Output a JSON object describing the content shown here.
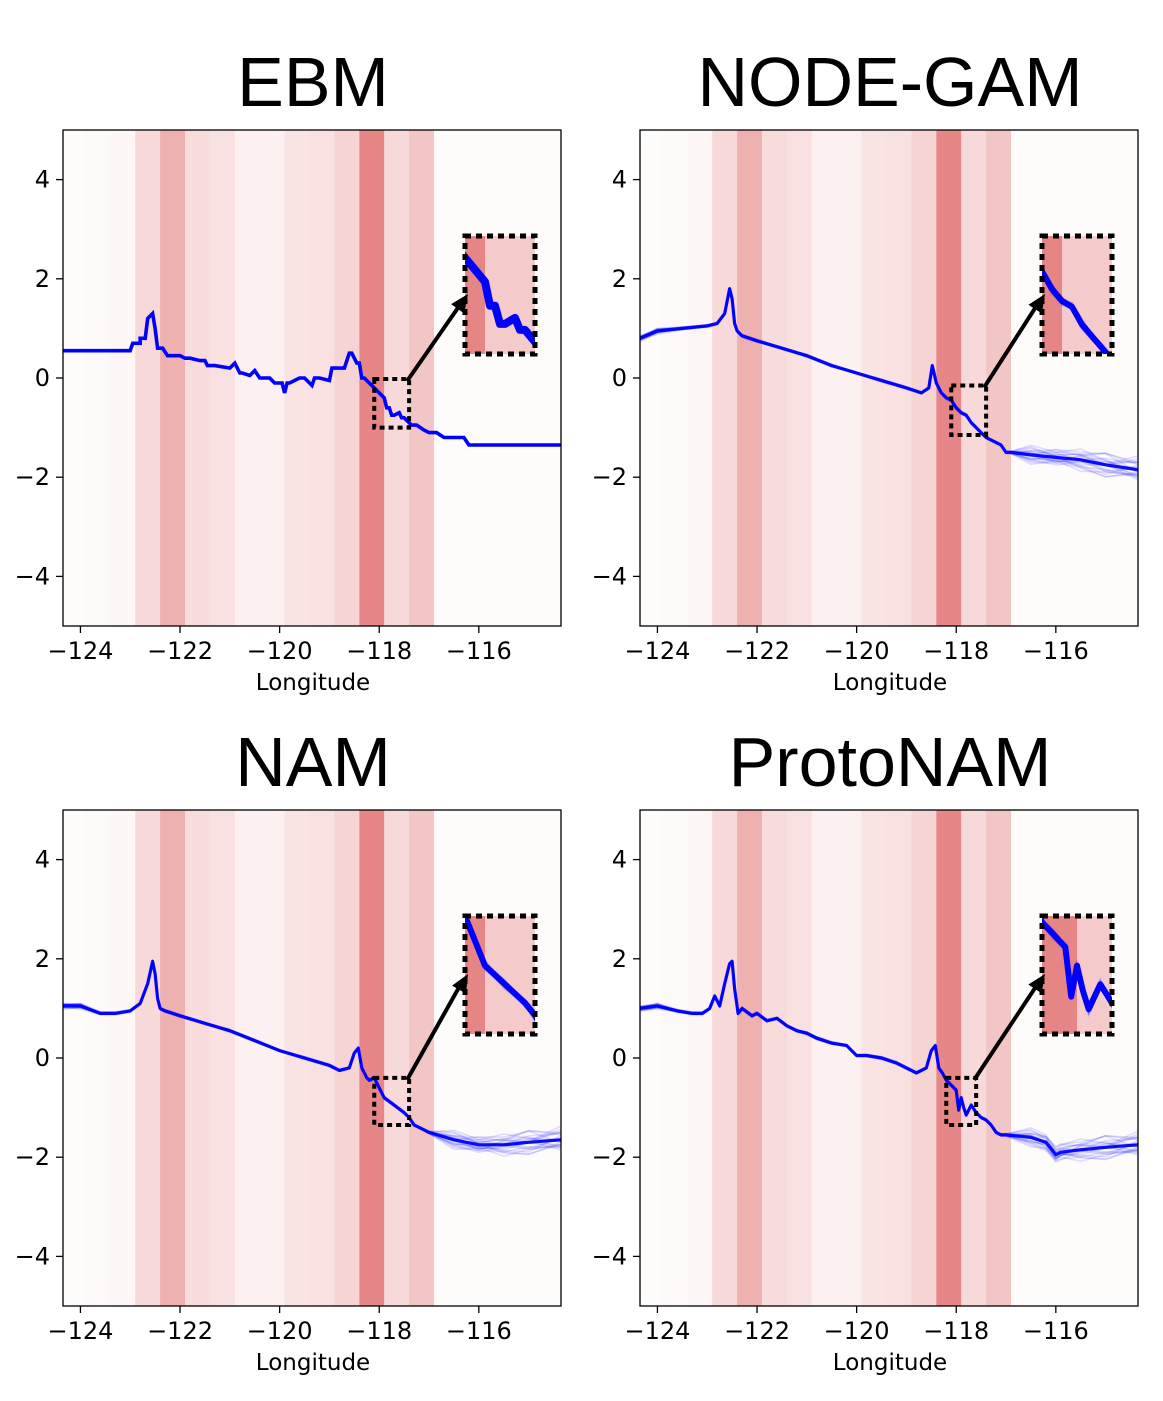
{
  "figure": {
    "background": "#ffffff",
    "line_color": "#0000ff",
    "band_color": "#e58080"
  },
  "chart_data": [
    {
      "type": "line",
      "title": "EBM",
      "xlabel": "Longitude",
      "ylabel": "",
      "xlim": [
        -124.35,
        -114.35
      ],
      "ylim": [
        -5,
        5
      ],
      "xticks": [
        -124,
        -122,
        -120,
        -118,
        -116
      ],
      "xtick_labels": [
        "−124",
        "−122",
        "−120",
        "−118",
        "−116"
      ],
      "yticks": [
        -4,
        -2,
        0,
        2,
        4
      ],
      "ytick_labels": [
        "−4",
        "−2",
        "0",
        "2",
        "4"
      ],
      "grid": false,
      "ensemble": false,
      "density_bands": [
        {
          "x0": -124.35,
          "x1": -123.9,
          "alpha": 0.03
        },
        {
          "x0": -123.9,
          "x1": -123.4,
          "alpha": 0.05
        },
        {
          "x0": -123.4,
          "x1": -122.9,
          "alpha": 0.07
        },
        {
          "x0": -122.9,
          "x1": -122.4,
          "alpha": 0.3
        },
        {
          "x0": -122.4,
          "x1": -121.9,
          "alpha": 0.62
        },
        {
          "x0": -121.9,
          "x1": -121.4,
          "alpha": 0.28
        },
        {
          "x0": -121.4,
          "x1": -120.9,
          "alpha": 0.24
        },
        {
          "x0": -120.9,
          "x1": -120.4,
          "alpha": 0.12
        },
        {
          "x0": -120.4,
          "x1": -119.9,
          "alpha": 0.12
        },
        {
          "x0": -119.9,
          "x1": -119.4,
          "alpha": 0.22
        },
        {
          "x0": -119.4,
          "x1": -118.9,
          "alpha": 0.24
        },
        {
          "x0": -118.9,
          "x1": -118.4,
          "alpha": 0.34
        },
        {
          "x0": -118.4,
          "x1": -117.9,
          "alpha": 0.95
        },
        {
          "x0": -117.9,
          "x1": -117.4,
          "alpha": 0.3
        },
        {
          "x0": -117.4,
          "x1": -116.9,
          "alpha": 0.45
        },
        {
          "x0": -116.9,
          "x1": -114.35,
          "alpha": 0.03
        }
      ],
      "zoom_box": {
        "x0": -118.1,
        "x1": -117.4,
        "y0": -1.0,
        "y1": -0.02
      },
      "series": [
        {
          "x": [
            -124.35,
            -123.0,
            -122.95,
            -122.8,
            -122.8,
            -122.7,
            -122.65,
            -122.55,
            -122.5,
            -122.45,
            -122.35,
            -122.25,
            -122.2,
            -122.0,
            -121.9,
            -121.8,
            -121.6,
            -121.5,
            -121.45,
            -121.3,
            -121.0,
            -120.9,
            -120.8,
            -120.75,
            -120.6,
            -120.5,
            -120.4,
            -120.2,
            -120.1,
            -119.95,
            -119.9,
            -119.85,
            -119.8,
            -119.6,
            -119.5,
            -119.35,
            -119.3,
            -119.2,
            -119.0,
            -118.95,
            -118.8,
            -118.7,
            -118.6,
            -118.55,
            -118.45,
            -118.4,
            -118.35,
            -118.3,
            -118.2,
            -118.1,
            -118.0,
            -117.9,
            -117.85,
            -117.8,
            -117.75,
            -117.7,
            -117.6,
            -117.55,
            -117.5,
            -117.45,
            -117.35,
            -117.25,
            -117.1,
            -117.0,
            -116.85,
            -116.7,
            -116.3,
            -116.2,
            -116.0,
            -115.5,
            -114.35
          ],
          "y": [
            0.55,
            0.55,
            0.7,
            0.7,
            0.8,
            0.8,
            1.2,
            1.3,
            1.0,
            0.6,
            0.6,
            0.45,
            0.45,
            0.45,
            0.4,
            0.4,
            0.35,
            0.35,
            0.25,
            0.25,
            0.2,
            0.3,
            0.1,
            0.1,
            0.05,
            0.15,
            0.0,
            0.0,
            -0.1,
            -0.1,
            -0.3,
            -0.1,
            -0.1,
            0.0,
            0.0,
            -0.15,
            0.0,
            0.0,
            -0.05,
            0.2,
            0.2,
            0.2,
            0.5,
            0.5,
            0.3,
            0.3,
            0.0,
            0.0,
            -0.1,
            -0.2,
            -0.3,
            -0.4,
            -0.6,
            -0.6,
            -0.75,
            -0.75,
            -0.7,
            -0.8,
            -0.8,
            -0.85,
            -0.95,
            -0.95,
            -1.05,
            -1.1,
            -1.1,
            -1.2,
            -1.2,
            -1.35,
            -1.35,
            -1.35,
            -1.35
          ]
        }
      ]
    },
    {
      "type": "line",
      "title": "NODE-GAM",
      "xlabel": "Longitude",
      "ylabel": "",
      "xlim": [
        -124.35,
        -114.35
      ],
      "ylim": [
        -5,
        5
      ],
      "xticks": [
        -124,
        -122,
        -120,
        -118,
        -116
      ],
      "xtick_labels": [
        "−124",
        "−122",
        "−120",
        "−118",
        "−116"
      ],
      "yticks": [
        -4,
        -2,
        0,
        2,
        4
      ],
      "ytick_labels": [
        "−4",
        "−2",
        "0",
        "2",
        "4"
      ],
      "grid": false,
      "ensemble": true,
      "density_bands": [
        {
          "x0": -124.35,
          "x1": -123.9,
          "alpha": 0.03
        },
        {
          "x0": -123.9,
          "x1": -123.4,
          "alpha": 0.05
        },
        {
          "x0": -123.4,
          "x1": -122.9,
          "alpha": 0.07
        },
        {
          "x0": -122.9,
          "x1": -122.4,
          "alpha": 0.3
        },
        {
          "x0": -122.4,
          "x1": -121.9,
          "alpha": 0.62
        },
        {
          "x0": -121.9,
          "x1": -121.4,
          "alpha": 0.28
        },
        {
          "x0": -121.4,
          "x1": -120.9,
          "alpha": 0.24
        },
        {
          "x0": -120.9,
          "x1": -120.4,
          "alpha": 0.12
        },
        {
          "x0": -120.4,
          "x1": -119.9,
          "alpha": 0.12
        },
        {
          "x0": -119.9,
          "x1": -119.4,
          "alpha": 0.22
        },
        {
          "x0": -119.4,
          "x1": -118.9,
          "alpha": 0.24
        },
        {
          "x0": -118.9,
          "x1": -118.4,
          "alpha": 0.34
        },
        {
          "x0": -118.4,
          "x1": -117.9,
          "alpha": 0.95
        },
        {
          "x0": -117.9,
          "x1": -117.4,
          "alpha": 0.3
        },
        {
          "x0": -117.4,
          "x1": -116.9,
          "alpha": 0.45
        },
        {
          "x0": -116.9,
          "x1": -114.35,
          "alpha": 0.03
        }
      ],
      "zoom_box": {
        "x0": -118.1,
        "x1": -117.4,
        "y0": -1.15,
        "y1": -0.15
      },
      "series": [
        {
          "x": [
            -124.35,
            -124.0,
            -123.5,
            -123.0,
            -122.8,
            -122.65,
            -122.55,
            -122.5,
            -122.45,
            -122.4,
            -122.3,
            -122.0,
            -121.5,
            -121.0,
            -120.5,
            -120.0,
            -119.5,
            -119.0,
            -118.7,
            -118.55,
            -118.48,
            -118.4,
            -118.3,
            -118.2,
            -118.1,
            -118.0,
            -117.9,
            -117.8,
            -117.7,
            -117.6,
            -117.5,
            -117.4,
            -117.3,
            -117.1,
            -117.0,
            -116.9,
            -116.5,
            -116.0,
            -115.5,
            -115.0,
            -114.35
          ],
          "y": [
            0.8,
            0.95,
            1.0,
            1.05,
            1.1,
            1.3,
            1.8,
            1.6,
            1.1,
            0.95,
            0.85,
            0.75,
            0.6,
            0.45,
            0.25,
            0.1,
            -0.05,
            -0.2,
            -0.3,
            -0.2,
            0.25,
            -0.1,
            -0.3,
            -0.4,
            -0.45,
            -0.6,
            -0.7,
            -0.75,
            -0.9,
            -1.0,
            -1.1,
            -1.2,
            -1.25,
            -1.35,
            -1.5,
            -1.5,
            -1.55,
            -1.6,
            -1.65,
            -1.75,
            -1.85
          ]
        }
      ]
    },
    {
      "type": "line",
      "title": "NAM",
      "xlabel": "Longitude",
      "ylabel": "",
      "xlim": [
        -124.35,
        -114.35
      ],
      "ylim": [
        -5,
        5
      ],
      "xticks": [
        -124,
        -122,
        -120,
        -118,
        -116
      ],
      "xtick_labels": [
        "−124",
        "−122",
        "−120",
        "−118",
        "−116"
      ],
      "yticks": [
        -4,
        -2,
        0,
        2,
        4
      ],
      "ytick_labels": [
        "−4",
        "−2",
        "0",
        "2",
        "4"
      ],
      "grid": false,
      "ensemble": true,
      "density_bands": [
        {
          "x0": -124.35,
          "x1": -123.9,
          "alpha": 0.03
        },
        {
          "x0": -123.9,
          "x1": -123.4,
          "alpha": 0.05
        },
        {
          "x0": -123.4,
          "x1": -122.9,
          "alpha": 0.07
        },
        {
          "x0": -122.9,
          "x1": -122.4,
          "alpha": 0.3
        },
        {
          "x0": -122.4,
          "x1": -121.9,
          "alpha": 0.62
        },
        {
          "x0": -121.9,
          "x1": -121.4,
          "alpha": 0.28
        },
        {
          "x0": -121.4,
          "x1": -120.9,
          "alpha": 0.24
        },
        {
          "x0": -120.9,
          "x1": -120.4,
          "alpha": 0.12
        },
        {
          "x0": -120.4,
          "x1": -119.9,
          "alpha": 0.12
        },
        {
          "x0": -119.9,
          "x1": -119.4,
          "alpha": 0.22
        },
        {
          "x0": -119.4,
          "x1": -118.9,
          "alpha": 0.24
        },
        {
          "x0": -118.9,
          "x1": -118.4,
          "alpha": 0.34
        },
        {
          "x0": -118.4,
          "x1": -117.9,
          "alpha": 0.95
        },
        {
          "x0": -117.9,
          "x1": -117.4,
          "alpha": 0.3
        },
        {
          "x0": -117.4,
          "x1": -116.9,
          "alpha": 0.45
        },
        {
          "x0": -116.9,
          "x1": -114.35,
          "alpha": 0.03
        }
      ],
      "zoom_box": {
        "x0": -118.1,
        "x1": -117.4,
        "y0": -1.35,
        "y1": -0.4
      },
      "series": [
        {
          "x": [
            -124.35,
            -124.0,
            -123.6,
            -123.3,
            -123.0,
            -122.8,
            -122.65,
            -122.55,
            -122.5,
            -122.45,
            -122.4,
            -122.3,
            -122.0,
            -121.5,
            -121.0,
            -120.5,
            -120.0,
            -119.5,
            -119.0,
            -118.8,
            -118.6,
            -118.5,
            -118.42,
            -118.35,
            -118.25,
            -118.2,
            -118.1,
            -118.0,
            -117.9,
            -117.7,
            -117.5,
            -117.4,
            -117.3,
            -117.1,
            -117.0,
            -116.5,
            -116.0,
            -115.5,
            -115.0,
            -114.35
          ],
          "y": [
            1.05,
            1.05,
            0.9,
            0.9,
            0.95,
            1.1,
            1.5,
            1.95,
            1.7,
            1.2,
            1.0,
            0.95,
            0.85,
            0.7,
            0.55,
            0.35,
            0.15,
            0.0,
            -0.15,
            -0.25,
            -0.2,
            0.1,
            0.2,
            -0.2,
            -0.4,
            -0.45,
            -0.4,
            -0.6,
            -0.8,
            -0.95,
            -1.1,
            -1.2,
            -1.35,
            -1.45,
            -1.5,
            -1.65,
            -1.75,
            -1.75,
            -1.7,
            -1.65
          ]
        }
      ]
    },
    {
      "type": "line",
      "title": "ProtoNAM",
      "xlabel": "Longitude",
      "ylabel": "",
      "xlim": [
        -124.35,
        -114.35
      ],
      "ylim": [
        -5,
        5
      ],
      "xticks": [
        -124,
        -122,
        -120,
        -118,
        -116
      ],
      "xtick_labels": [
        "−124",
        "−122",
        "−120",
        "−118",
        "−116"
      ],
      "yticks": [
        -4,
        -2,
        0,
        2,
        4
      ],
      "ytick_labels": [
        "−4",
        "−2",
        "0",
        "2",
        "4"
      ],
      "grid": false,
      "ensemble": true,
      "density_bands": [
        {
          "x0": -124.35,
          "x1": -123.9,
          "alpha": 0.03
        },
        {
          "x0": -123.9,
          "x1": -123.4,
          "alpha": 0.05
        },
        {
          "x0": -123.4,
          "x1": -122.9,
          "alpha": 0.07
        },
        {
          "x0": -122.9,
          "x1": -122.4,
          "alpha": 0.3
        },
        {
          "x0": -122.4,
          "x1": -121.9,
          "alpha": 0.62
        },
        {
          "x0": -121.9,
          "x1": -121.4,
          "alpha": 0.28
        },
        {
          "x0": -121.4,
          "x1": -120.9,
          "alpha": 0.24
        },
        {
          "x0": -120.9,
          "x1": -120.4,
          "alpha": 0.12
        },
        {
          "x0": -120.4,
          "x1": -119.9,
          "alpha": 0.12
        },
        {
          "x0": -119.9,
          "x1": -119.4,
          "alpha": 0.22
        },
        {
          "x0": -119.4,
          "x1": -118.9,
          "alpha": 0.24
        },
        {
          "x0": -118.9,
          "x1": -118.4,
          "alpha": 0.34
        },
        {
          "x0": -118.4,
          "x1": -117.9,
          "alpha": 0.95
        },
        {
          "x0": -117.9,
          "x1": -117.4,
          "alpha": 0.3
        },
        {
          "x0": -117.4,
          "x1": -116.9,
          "alpha": 0.45
        },
        {
          "x0": -116.9,
          "x1": -114.35,
          "alpha": 0.03
        }
      ],
      "zoom_box": {
        "x0": -118.2,
        "x1": -117.6,
        "y0": -1.35,
        "y1": -0.4
      },
      "series": [
        {
          "x": [
            -124.35,
            -124.0,
            -123.6,
            -123.3,
            -123.1,
            -122.95,
            -122.85,
            -122.75,
            -122.65,
            -122.55,
            -122.5,
            -122.45,
            -122.38,
            -122.3,
            -122.1,
            -122.0,
            -121.8,
            -121.6,
            -121.4,
            -121.2,
            -121.0,
            -120.8,
            -120.5,
            -120.2,
            -120.0,
            -119.8,
            -119.5,
            -119.2,
            -119.0,
            -118.8,
            -118.6,
            -118.5,
            -118.42,
            -118.35,
            -118.28,
            -118.2,
            -118.1,
            -118.0,
            -117.95,
            -117.9,
            -117.85,
            -117.8,
            -117.7,
            -117.6,
            -117.5,
            -117.4,
            -117.3,
            -117.2,
            -117.1,
            -117.0,
            -116.5,
            -116.2,
            -116.0,
            -115.9,
            -115.5,
            -115.0,
            -114.35
          ],
          "y": [
            1.0,
            1.05,
            0.95,
            0.9,
            0.9,
            1.0,
            1.25,
            1.05,
            1.5,
            1.9,
            1.95,
            1.4,
            0.9,
            1.0,
            0.85,
            0.9,
            0.75,
            0.8,
            0.65,
            0.55,
            0.5,
            0.4,
            0.3,
            0.25,
            0.05,
            0.05,
            0.0,
            -0.1,
            -0.2,
            -0.3,
            -0.2,
            0.15,
            0.25,
            -0.2,
            -0.3,
            -0.45,
            -0.55,
            -0.65,
            -1.05,
            -0.8,
            -1.0,
            -1.15,
            -0.95,
            -1.1,
            -1.2,
            -1.25,
            -1.35,
            -1.5,
            -1.55,
            -1.55,
            -1.6,
            -1.7,
            -1.95,
            -1.9,
            -1.85,
            -1.8,
            -1.75
          ]
        }
      ]
    }
  ]
}
